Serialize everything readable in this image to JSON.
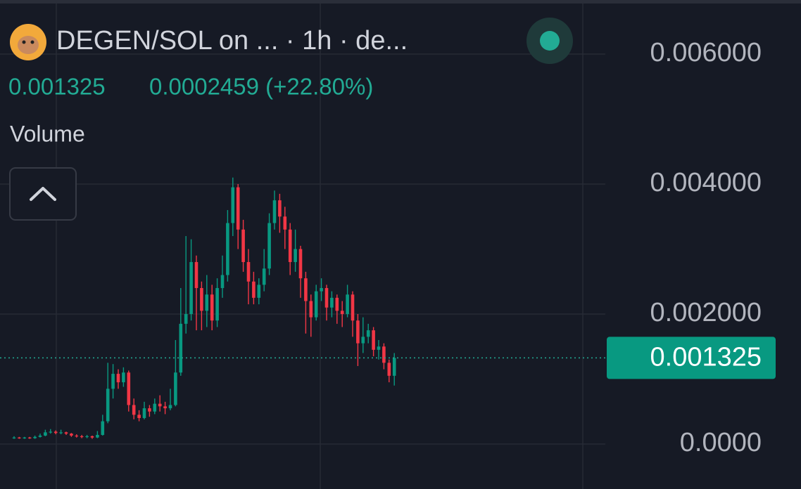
{
  "header": {
    "title": "DEGEN/SOL on ...  · 1h · de...",
    "price": "0.001325",
    "change": "0.0002459 (+22.80%)",
    "volume_label": "Volume"
  },
  "chart_data": {
    "type": "candlestick",
    "up_color": "#089981",
    "down_color": "#f23645",
    "ylim": [
      -0.000692,
      0.006832
    ],
    "yticks": [
      {
        "value": 0,
        "label": "0.0000"
      },
      {
        "value": 0.002,
        "label": "0.002000"
      },
      {
        "value": 0.004,
        "label": "0.004000"
      },
      {
        "value": 0.006,
        "label": "0.006000"
      }
    ],
    "grid": true,
    "last_price": 0.001325,
    "open": [
      9e-05,
      0.0001,
      9e-05,
      0.0001,
      9e-05,
      0.00011,
      0.00013,
      0.00018,
      0.00019,
      0.00017,
      0.00018,
      0.00016,
      0.00013,
      0.00012,
      0.00011,
      0.00012,
      0.0001,
      0.00014,
      0.00035,
      0.00085,
      0.00108,
      0.00095,
      0.0011,
      0.0006,
      0.00045,
      0.0004,
      0.00055,
      0.0005,
      0.00062,
      0.00058,
      0.00055,
      0.0006,
      0.0011,
      0.00185,
      0.002,
      0.0028,
      0.0024,
      0.00205,
      0.0023,
      0.0019,
      0.0024,
      0.0026,
      0.0034,
      0.00395,
      0.0033,
      0.0028,
      0.0025,
      0.00225,
      0.00245,
      0.0027,
      0.0034,
      0.00375,
      0.0035,
      0.0033,
      0.0028,
      0.003,
      0.00255,
      0.0022,
      0.00195,
      0.00235,
      0.0024,
      0.0021,
      0.00225,
      0.00205,
      0.002,
      0.0023,
      0.0019,
      0.00155,
      0.00165,
      0.00175,
      0.00145,
      0.0015,
      0.00125,
      0.00105
    ],
    "high": [
      0.00012,
      0.00011,
      0.00011,
      0.00011,
      0.00013,
      0.00016,
      0.00022,
      0.00023,
      0.00021,
      0.00022,
      0.00019,
      0.00017,
      0.00015,
      0.00014,
      0.00014,
      0.00013,
      0.0002,
      0.00045,
      0.00125,
      0.00123,
      0.00115,
      0.00118,
      0.00113,
      0.0007,
      0.00052,
      0.00065,
      0.0006,
      0.0007,
      0.00075,
      0.00065,
      0.00085,
      0.0016,
      0.0024,
      0.0032,
      0.00315,
      0.0029,
      0.0025,
      0.0026,
      0.00245,
      0.00255,
      0.0029,
      0.0036,
      0.0041,
      0.004,
      0.00345,
      0.003,
      0.00265,
      0.00255,
      0.003,
      0.00355,
      0.0039,
      0.00385,
      0.00365,
      0.0034,
      0.0033,
      0.00305,
      0.00265,
      0.0023,
      0.00245,
      0.00255,
      0.00245,
      0.00235,
      0.0023,
      0.0022,
      0.00245,
      0.00235,
      0.002,
      0.00195,
      0.00185,
      0.0018,
      0.0016,
      0.00155,
      0.0013,
      0.0014
    ],
    "low": [
      8e-05,
      8e-05,
      8e-05,
      8e-05,
      8e-05,
      0.0001,
      0.00012,
      0.00016,
      0.00015,
      0.00015,
      0.00014,
      0.00011,
      0.0001,
      9e-05,
      9e-05,
      8e-05,
      9e-05,
      0.00013,
      0.00032,
      0.0007,
      0.00085,
      0.00088,
      0.0005,
      0.00038,
      0.00035,
      0.00038,
      0.00042,
      0.00046,
      0.0005,
      0.00046,
      0.00052,
      0.00058,
      0.00105,
      0.0017,
      0.0019,
      0.00175,
      0.00175,
      0.0018,
      0.00175,
      0.0018,
      0.00225,
      0.0025,
      0.0032,
      0.003,
      0.00265,
      0.00215,
      0.00215,
      0.00215,
      0.00235,
      0.0026,
      0.0033,
      0.00325,
      0.003,
      0.0026,
      0.00265,
      0.00225,
      0.0017,
      0.00165,
      0.0019,
      0.0022,
      0.0019,
      0.00195,
      0.00185,
      0.0018,
      0.00195,
      0.00165,
      0.0012,
      0.0014,
      0.00155,
      0.00135,
      0.0013,
      0.00115,
      0.00095,
      0.0009
    ],
    "close": [
      0.0001,
      9e-05,
      0.0001,
      9e-05,
      0.00011,
      0.00013,
      0.00018,
      0.00019,
      0.00017,
      0.00018,
      0.00016,
      0.00013,
      0.00012,
      0.00011,
      0.00012,
      0.0001,
      0.00014,
      0.00035,
      0.00085,
      0.00108,
      0.00095,
      0.0011,
      0.0006,
      0.00045,
      0.0004,
      0.00055,
      0.0005,
      0.00062,
      0.00058,
      0.00055,
      0.0006,
      0.0011,
      0.00185,
      0.002,
      0.0028,
      0.0024,
      0.00205,
      0.0023,
      0.0019,
      0.0024,
      0.0026,
      0.0034,
      0.00395,
      0.0033,
      0.0028,
      0.0025,
      0.00225,
      0.00245,
      0.0027,
      0.0034,
      0.00375,
      0.0035,
      0.0033,
      0.0028,
      0.003,
      0.00255,
      0.0022,
      0.00195,
      0.00235,
      0.0024,
      0.0021,
      0.00225,
      0.00205,
      0.002,
      0.0023,
      0.0019,
      0.00155,
      0.00165,
      0.00175,
      0.00145,
      0.0015,
      0.00125,
      0.00105,
      0.001325
    ]
  }
}
